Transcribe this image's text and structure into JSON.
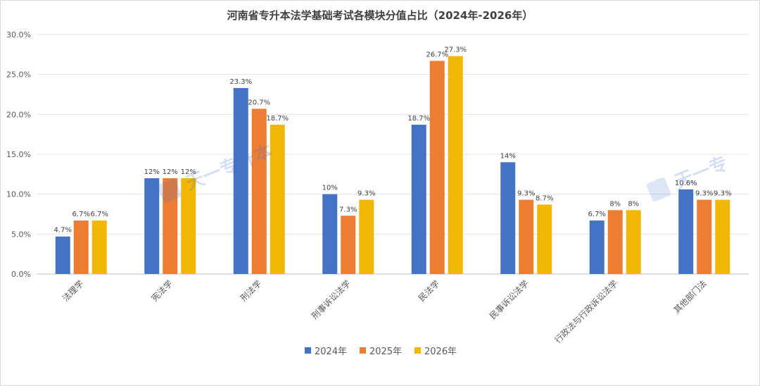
{
  "chart_data": {
    "type": "bar",
    "title": "河南省专升本法学基础考试各模块分值占比（2024年-2026年）",
    "categories": [
      "法理学",
      "宪法学",
      "刑法学",
      "刑事诉讼法学",
      "民法学",
      "民事诉讼法学",
      "行政法与行政诉讼法学",
      "其他部门法"
    ],
    "series": [
      {
        "name": "2024年",
        "color": "#4472c4",
        "values": [
          4.7,
          12,
          23.3,
          10,
          18.7,
          14,
          6.7,
          10.6
        ],
        "labels": [
          "4.7%",
          "12%",
          "23.3%",
          "10%",
          "18.7%",
          "14%",
          "6.7%",
          "10.6%"
        ]
      },
      {
        "name": "2025年",
        "color": "#ed7d31",
        "values": [
          6.7,
          12,
          20.7,
          7.3,
          26.7,
          9.3,
          8,
          9.3
        ],
        "labels": [
          "6.7%",
          "12%",
          "20.7%",
          "7.3%",
          "26.7%",
          "9.3%",
          "8%",
          "9.3%"
        ]
      },
      {
        "name": "2026年",
        "color": "#f2b705",
        "values": [
          6.7,
          12,
          18.7,
          9.3,
          27.3,
          8.7,
          8,
          9.3
        ],
        "labels": [
          "6.7%",
          "12%",
          "18.7%",
          "9.3%",
          "27.3%",
          "8.7%",
          "8%",
          "9.3%"
        ]
      }
    ],
    "ylim": [
      0,
      30
    ],
    "yticks": [
      "0.0%",
      "5.0%",
      "10.0%",
      "15.0%",
      "20.0%",
      "25.0%",
      "30.0%"
    ],
    "grid": true,
    "legend_position": "bottom"
  },
  "watermark": {
    "text": "天一专升本",
    "text_right": "天一专"
  }
}
